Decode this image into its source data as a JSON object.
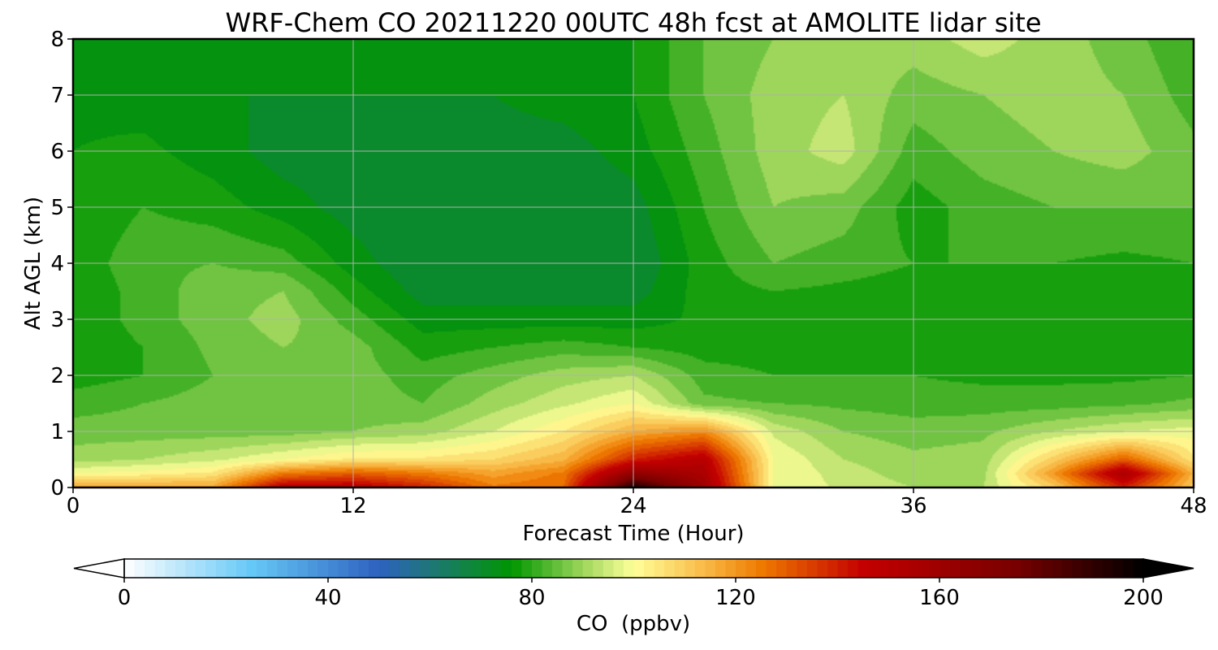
{
  "chart_data": {
    "type": "heatmap",
    "title": "WRF-Chem CO  20211220 00UTC 48h fcst at AMOLITE lidar site",
    "xlabel": "Forecast Time (Hour)",
    "ylabel": "Alt AGL (km)",
    "xlim": [
      0,
      48
    ],
    "ylim": [
      0,
      8
    ],
    "x_ticks": [
      0,
      12,
      24,
      36,
      48
    ],
    "y_ticks": [
      0,
      1,
      2,
      3,
      4,
      5,
      6,
      7,
      8
    ],
    "grid": true,
    "colorbar": {
      "label": "CO  (ppbv)",
      "range": [
        0,
        200
      ],
      "ticks": [
        0,
        40,
        80,
        120,
        160,
        200
      ],
      "extend": "both",
      "stops": [
        {
          "value": 0,
          "color": "#ffffff"
        },
        {
          "value": 25,
          "color": "#66c8f6"
        },
        {
          "value": 50,
          "color": "#2e62c0"
        },
        {
          "value": 62,
          "color": "#1a7a6a"
        },
        {
          "value": 76,
          "color": "#009600"
        },
        {
          "value": 90,
          "color": "#9ed65c"
        },
        {
          "value": 100,
          "color": "#ffff99"
        },
        {
          "value": 115,
          "color": "#f8b440"
        },
        {
          "value": 125,
          "color": "#ee7a00"
        },
        {
          "value": 145,
          "color": "#c40000"
        },
        {
          "value": 175,
          "color": "#780000"
        },
        {
          "value": 200,
          "color": "#000000"
        }
      ]
    },
    "hours": [
      0,
      3,
      6,
      9,
      12,
      15,
      18,
      21,
      24,
      27,
      30,
      33,
      36,
      39,
      42,
      45,
      48
    ],
    "altitudes_km": [
      0,
      0.25,
      0.5,
      1,
      1.5,
      2,
      2.5,
      3,
      3.5,
      4,
      5,
      6,
      7,
      8
    ],
    "values_ppbv": [
      [
        118,
        118,
        118,
        150,
        150,
        140,
        125,
        128,
        195,
        160,
        100,
        95,
        92,
        92,
        110,
        140,
        110
      ],
      [
        100,
        102,
        105,
        125,
        130,
        125,
        118,
        125,
        165,
        155,
        100,
        94,
        90,
        91,
        120,
        155,
        115
      ],
      [
        90,
        92,
        95,
        100,
        105,
        105,
        108,
        115,
        140,
        150,
        100,
        92,
        89,
        90,
        110,
        130,
        105
      ],
      [
        86,
        86,
        86,
        86,
        88,
        90,
        96,
        104,
        116,
        122,
        95,
        88,
        86,
        87,
        92,
        96,
        98
      ],
      [
        82,
        84,
        86,
        86,
        86,
        84,
        90,
        95,
        100,
        85,
        84,
        83,
        82,
        82,
        82,
        83,
        85
      ],
      [
        78,
        80,
        84,
        86,
        86,
        82,
        86,
        90,
        92,
        82,
        80,
        80,
        80,
        79,
        79,
        79,
        80
      ],
      [
        76,
        80,
        85,
        88,
        86,
        78,
        80,
        82,
        80,
        78,
        78,
        78,
        78,
        78,
        78,
        78,
        78
      ],
      [
        76,
        82,
        86,
        90,
        82,
        74,
        74,
        74,
        74,
        77,
        78,
        78,
        78,
        78,
        78,
        78,
        78
      ],
      [
        76,
        82,
        86,
        88,
        78,
        70,
        70,
        70,
        70,
        78,
        80,
        79,
        78,
        78,
        78,
        77,
        78
      ],
      [
        77,
        83,
        84,
        82,
        74,
        68,
        68,
        68,
        68,
        78,
        84,
        82,
        80,
        80,
        80,
        79,
        80
      ],
      [
        76,
        80,
        78,
        74,
        70,
        68,
        68,
        68,
        70,
        80,
        88,
        86,
        78,
        82,
        84,
        84,
        84
      ],
      [
        76,
        77,
        74,
        70,
        70,
        70,
        70,
        70,
        74,
        82,
        90,
        94,
        82,
        86,
        88,
        90,
        85
      ],
      [
        75,
        74,
        72,
        72,
        72,
        72,
        72,
        74,
        76,
        84,
        90,
        92,
        86,
        88,
        90,
        88,
        82
      ],
      [
        75,
        73,
        72,
        72,
        72,
        72,
        74,
        74,
        76,
        84,
        88,
        90,
        90,
        94,
        90,
        86,
        80
      ]
    ]
  }
}
